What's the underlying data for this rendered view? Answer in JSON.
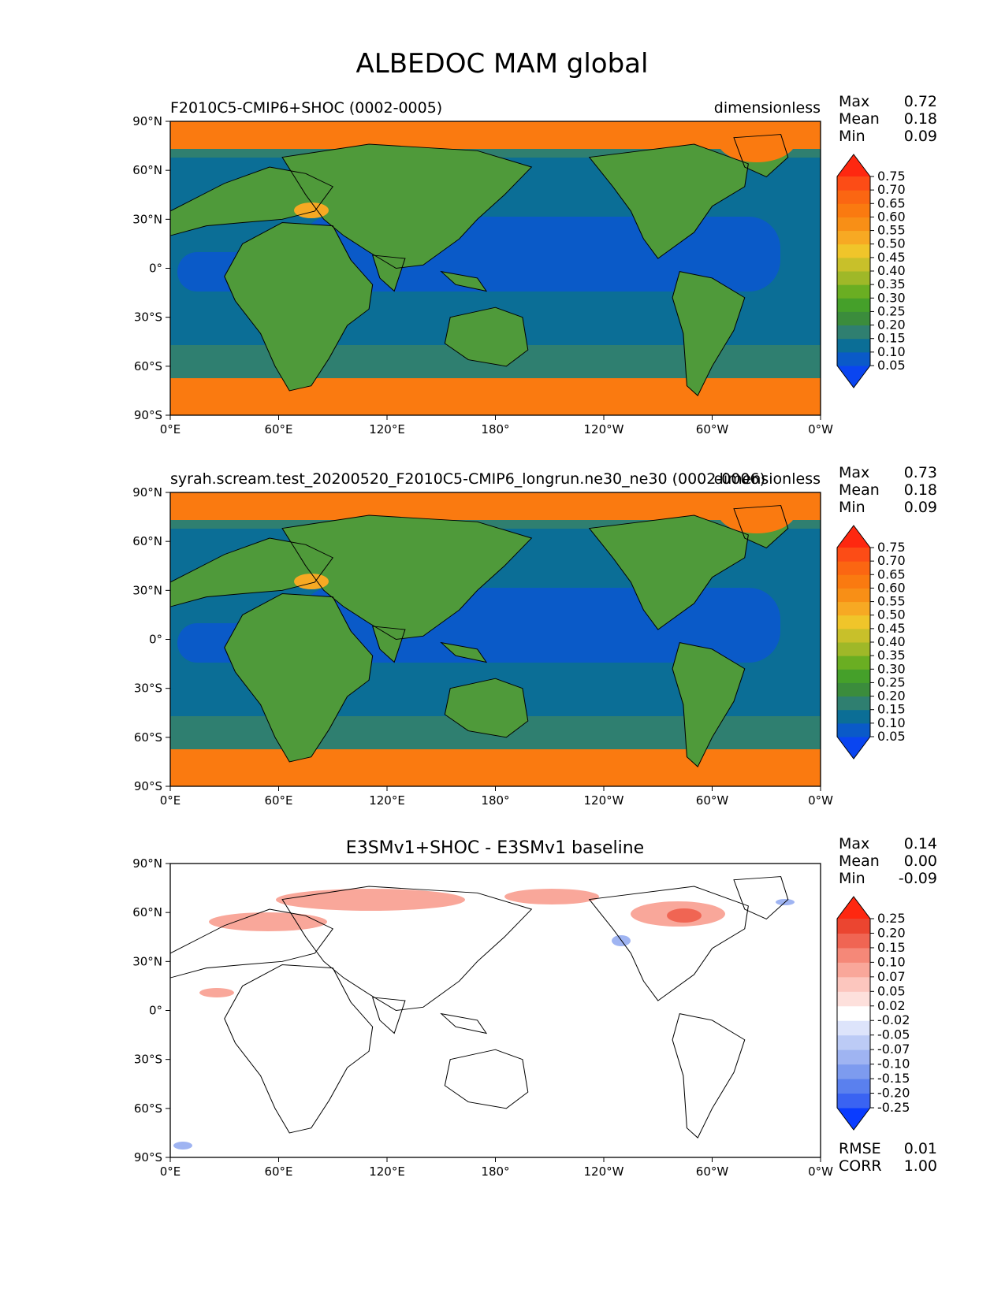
{
  "figure_title": "ALBEDOC MAM global",
  "chart_data": [
    {
      "type": "heatmap",
      "title": "F2010C5-CMIP6+SHOC (0002-0005)",
      "units": "dimensionless",
      "stats": {
        "max_label": "Max",
        "max": "0.72",
        "mean_label": "Mean",
        "mean": "0.18",
        "min_label": "Min",
        "min": "0.09"
      },
      "x_ticks": [
        "0°E",
        "60°E",
        "120°E",
        "180°",
        "120°W",
        "60°W",
        "0°W"
      ],
      "y_ticks": [
        "90°N",
        "60°N",
        "30°N",
        "0°",
        "30°S",
        "60°S",
        "90°S"
      ],
      "xlim": [
        0,
        360
      ],
      "ylim": [
        -90,
        90
      ],
      "colorbar": {
        "levels": [
          "0.05",
          "0.10",
          "0.15",
          "0.20",
          "0.25",
          "0.30",
          "0.35",
          "0.40",
          "0.45",
          "0.50",
          "0.55",
          "0.60",
          "0.65",
          "0.70",
          "0.75"
        ],
        "colors": [
          "#0a45f0",
          "#0a5ac8",
          "#0b6e96",
          "#2f7f70",
          "#3b8c3c",
          "#45a02a",
          "#6aae22",
          "#9fb828",
          "#c8c02a",
          "#f0c52a",
          "#f7a923",
          "#f88f16",
          "#fa7a10",
          "#fb6612",
          "#fc4c16",
          "#fe2810"
        ]
      },
      "field": {
        "ocean_low_color": "#0a5ac8",
        "ocean_mid_color": "#0b6e96",
        "southern_band_color": "#2f7f70",
        "polar_color": "#fa7a10",
        "tibet_color": "#f7a923"
      }
    },
    {
      "type": "heatmap",
      "title": "syrah.scream.test_20200520_F2010C5-CMIP6_longrun.ne30_ne30 (0002-0006)",
      "units": "dimensionless",
      "stats": {
        "max_label": "Max",
        "max": "0.73",
        "mean_label": "Mean",
        "mean": "0.18",
        "min_label": "Min",
        "min": "0.09"
      },
      "x_ticks": [
        "0°E",
        "60°E",
        "120°E",
        "180°",
        "120°W",
        "60°W",
        "0°W"
      ],
      "y_ticks": [
        "90°N",
        "60°N",
        "30°N",
        "0°",
        "30°S",
        "60°S",
        "90°S"
      ],
      "xlim": [
        0,
        360
      ],
      "ylim": [
        -90,
        90
      ],
      "colorbar": {
        "levels": [
          "0.05",
          "0.10",
          "0.15",
          "0.20",
          "0.25",
          "0.30",
          "0.35",
          "0.40",
          "0.45",
          "0.50",
          "0.55",
          "0.60",
          "0.65",
          "0.70",
          "0.75"
        ],
        "colors": [
          "#0a45f0",
          "#0a5ac8",
          "#0b6e96",
          "#2f7f70",
          "#3b8c3c",
          "#45a02a",
          "#6aae22",
          "#9fb828",
          "#c8c02a",
          "#f0c52a",
          "#f7a923",
          "#f88f16",
          "#fa7a10",
          "#fb6612",
          "#fc4c16",
          "#fe2810"
        ]
      },
      "field": {
        "ocean_low_color": "#0a5ac8",
        "ocean_mid_color": "#0b6e96",
        "southern_band_color": "#2f7f70",
        "polar_color": "#fa7a10",
        "tibet_color": "#f7a923"
      }
    },
    {
      "type": "heatmap",
      "title": "E3SMv1+SHOC - E3SMv1 baseline",
      "units": "",
      "stats": {
        "max_label": "Max",
        "max": "0.14",
        "mean_label": "Mean",
        "mean": "0.00",
        "min_label": "Min",
        "min": "-0.09"
      },
      "extra_stats": {
        "rmse_label": "RMSE",
        "rmse": "0.01",
        "corr_label": "CORR",
        "corr": "1.00"
      },
      "x_ticks": [
        "0°E",
        "60°E",
        "120°E",
        "180°",
        "120°W",
        "60°W",
        "0°W"
      ],
      "y_ticks": [
        "90°N",
        "60°N",
        "30°N",
        "0°",
        "30°S",
        "60°S",
        "90°S"
      ],
      "xlim": [
        0,
        360
      ],
      "ylim": [
        -90,
        90
      ],
      "colorbar": {
        "levels": [
          "-0.25",
          "-0.20",
          "-0.15",
          "-0.10",
          "-0.07",
          "-0.05",
          "-0.02",
          "0.02",
          "0.05",
          "0.07",
          "0.10",
          "0.15",
          "0.20",
          "0.25"
        ],
        "colors": [
          "#0a3cff",
          "#3a63f2",
          "#5a80ee",
          "#7d9bef",
          "#9fb4f2",
          "#bccbf6",
          "#dde4fb",
          "#ffffff",
          "#fde0dc",
          "#fcc6be",
          "#f9a79a",
          "#f58878",
          "#f06553",
          "#eb4530",
          "#fe2810"
        ]
      },
      "field": {
        "background_color": "#ffffff",
        "positive_color": "#f9a79a",
        "strong_positive_color": "#f06553",
        "negative_color": "#9fb4f2"
      }
    }
  ]
}
